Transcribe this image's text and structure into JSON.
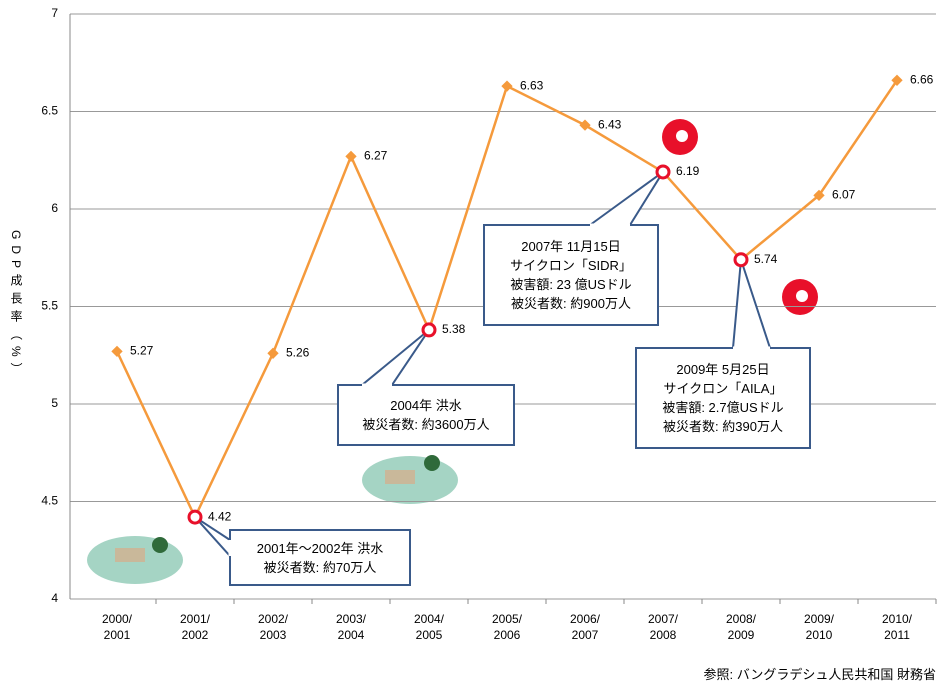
{
  "chart_data": {
    "type": "line",
    "ylabel": "GDP成長率（%）",
    "categories": [
      "2000/\n2001",
      "2001/\n2002",
      "2002/\n2003",
      "2003/\n2004",
      "2004/\n2005",
      "2005/\n2006",
      "2006/\n2007",
      "2007/\n2008",
      "2008/\n2009",
      "2009/\n2010",
      "2010/\n2011"
    ],
    "values": [
      5.27,
      4.42,
      5.26,
      6.27,
      5.38,
      6.63,
      6.43,
      6.19,
      5.74,
      6.07,
      6.66
    ],
    "color": "#f59a3c",
    "ylim": [
      4,
      7
    ],
    "yticks": [
      4,
      4.5,
      5,
      5.5,
      6,
      6.5,
      7
    ],
    "grid": true,
    "annotations": [
      {
        "point": 1,
        "lines": [
          "2001年～2002年  洪水",
          "被災者数:   約70万人"
        ]
      },
      {
        "point": 4,
        "lines": [
          "2004年  洪水",
          "被災者数: 約3600万人"
        ]
      },
      {
        "point": 7,
        "lines": [
          "2007年 11月15日",
          "サイクロン「SIDR」",
          "被害額: 23 億USドル",
          "被災者数: 約900万人"
        ]
      },
      {
        "point": 8,
        "lines": [
          "2009年 5月25日",
          "サイクロン「AILA」",
          "被害額: 2.7億USドル",
          "被災者数: 約390万人"
        ]
      }
    ],
    "source": "参照:  バングラデシュ人民共和国 財務省"
  }
}
